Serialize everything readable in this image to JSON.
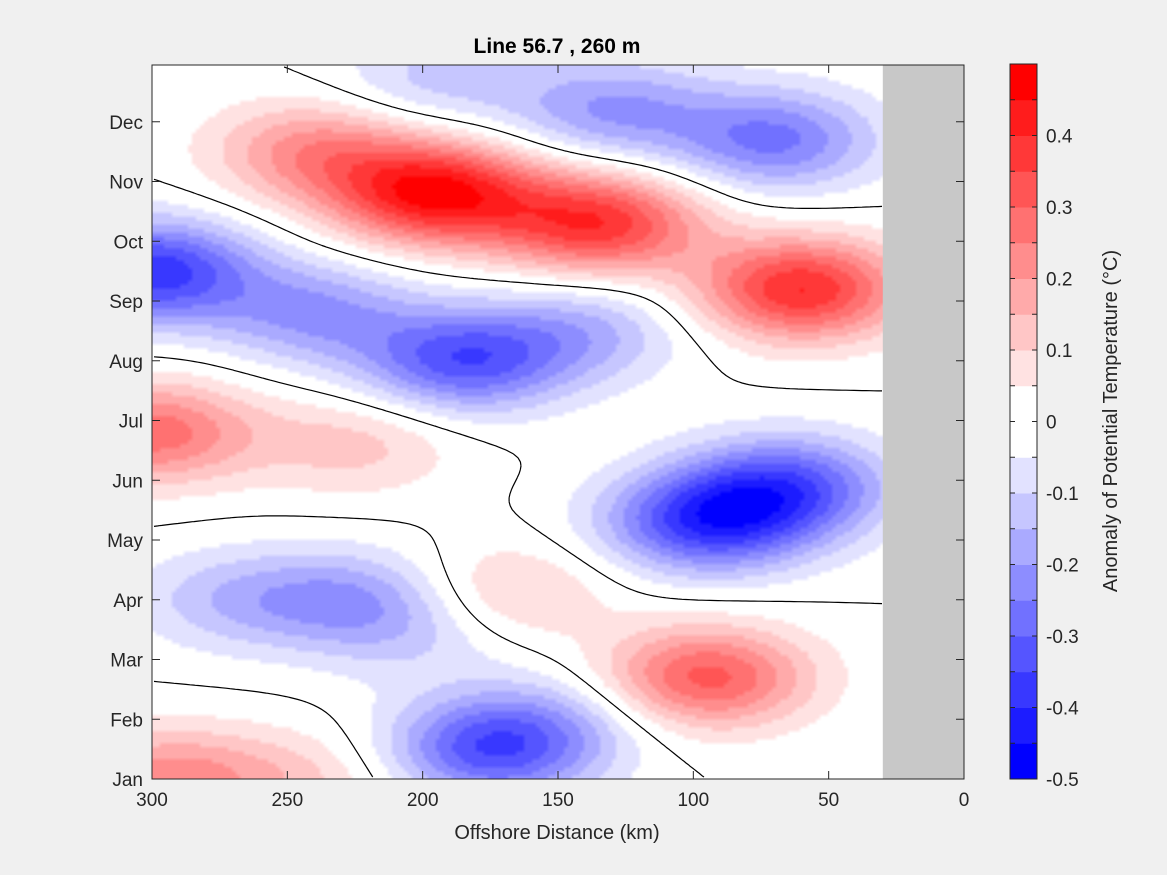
{
  "chart_data": {
    "type": "heatmap",
    "title": "Line 56.7 , 260 m",
    "xlabel": "Offshore Distance (km)",
    "ylabel": "",
    "xlim": [
      300,
      0
    ],
    "x_ticks": [
      "300",
      "250",
      "200",
      "150",
      "100",
      "50",
      "0"
    ],
    "x_tick_values": [
      300,
      250,
      200,
      150,
      100,
      50,
      0
    ],
    "y_ticks": [
      "Jan",
      "Feb",
      "Mar",
      "Apr",
      "May",
      "Jun",
      "Jul",
      "Aug",
      "Sep",
      "Oct",
      "Nov",
      "Dec"
    ],
    "y_tick_values": [
      1,
      2,
      3,
      4,
      5,
      6,
      7,
      8,
      9,
      10,
      11,
      12
    ],
    "ylim": [
      1,
      12.95
    ],
    "no_data_region": {
      "x_from": 30,
      "x_to": 0,
      "color": "#c8c8c8"
    },
    "contour_line_level": 0,
    "colorbar": {
      "label": "Anomaly of Potential Temperature (°C)",
      "range": [
        -0.5,
        0.5
      ],
      "tick_labels": [
        "0.4",
        "0.3",
        "0.2",
        "0.1",
        "0",
        "-0.1",
        "-0.2",
        "-0.3",
        "-0.4",
        "-0.5"
      ],
      "tick_values": [
        0.4,
        0.3,
        0.2,
        0.1,
        0,
        -0.1,
        -0.2,
        -0.3,
        -0.4,
        -0.5
      ],
      "colors": [
        "#0000ff",
        "#1c1cff",
        "#3838ff",
        "#5555ff",
        "#7171ff",
        "#8d8dff",
        "#aaaaff",
        "#c6c6ff",
        "#e2e2ff",
        "#ffffff",
        "#ffffff",
        "#ffe2e2",
        "#ffc6c6",
        "#ffaaaa",
        "#ff8d8d",
        "#ff7171",
        "#ff5555",
        "#ff3838",
        "#ff1c1c",
        "#ff0000"
      ]
    },
    "anomaly_centers": [
      {
        "x": 195,
        "month": 10.8,
        "value": 0.45
      },
      {
        "x": 135,
        "month": 10.3,
        "value": 0.38
      },
      {
        "x": 240,
        "month": 11.5,
        "value": 0.22
      },
      {
        "x": 60,
        "month": 9.2,
        "value": 0.4
      },
      {
        "x": 300,
        "month": 6.8,
        "value": 0.28
      },
      {
        "x": 225,
        "month": 6.6,
        "value": 0.12
      },
      {
        "x": 170,
        "month": 4.1,
        "value": 0.13
      },
      {
        "x": 95,
        "month": 2.7,
        "value": 0.32
      },
      {
        "x": 295,
        "month": 1.0,
        "value": 0.22
      },
      {
        "x": 245,
        "month": 1.0,
        "value": 0.1
      },
      {
        "x": 300,
        "month": 9.5,
        "value": -0.38
      },
      {
        "x": 240,
        "month": 8.8,
        "value": -0.2
      },
      {
        "x": 185,
        "month": 8.0,
        "value": -0.32
      },
      {
        "x": 140,
        "month": 8.5,
        "value": -0.15
      },
      {
        "x": 95,
        "month": 5.3,
        "value": -0.36
      },
      {
        "x": 65,
        "month": 5.9,
        "value": -0.3
      },
      {
        "x": 70,
        "month": 11.7,
        "value": -0.26
      },
      {
        "x": 130,
        "month": 12.2,
        "value": -0.2
      },
      {
        "x": 195,
        "month": 12.7,
        "value": -0.12
      },
      {
        "x": 175,
        "month": 1.5,
        "value": -0.32
      },
      {
        "x": 225,
        "month": 4.0,
        "value": -0.18
      },
      {
        "x": 270,
        "month": 4.0,
        "value": -0.13
      },
      {
        "x": 200,
        "month": 3.4,
        "value": -0.08
      },
      {
        "x": 150,
        "month": 2.0,
        "value": -0.1
      }
    ]
  }
}
